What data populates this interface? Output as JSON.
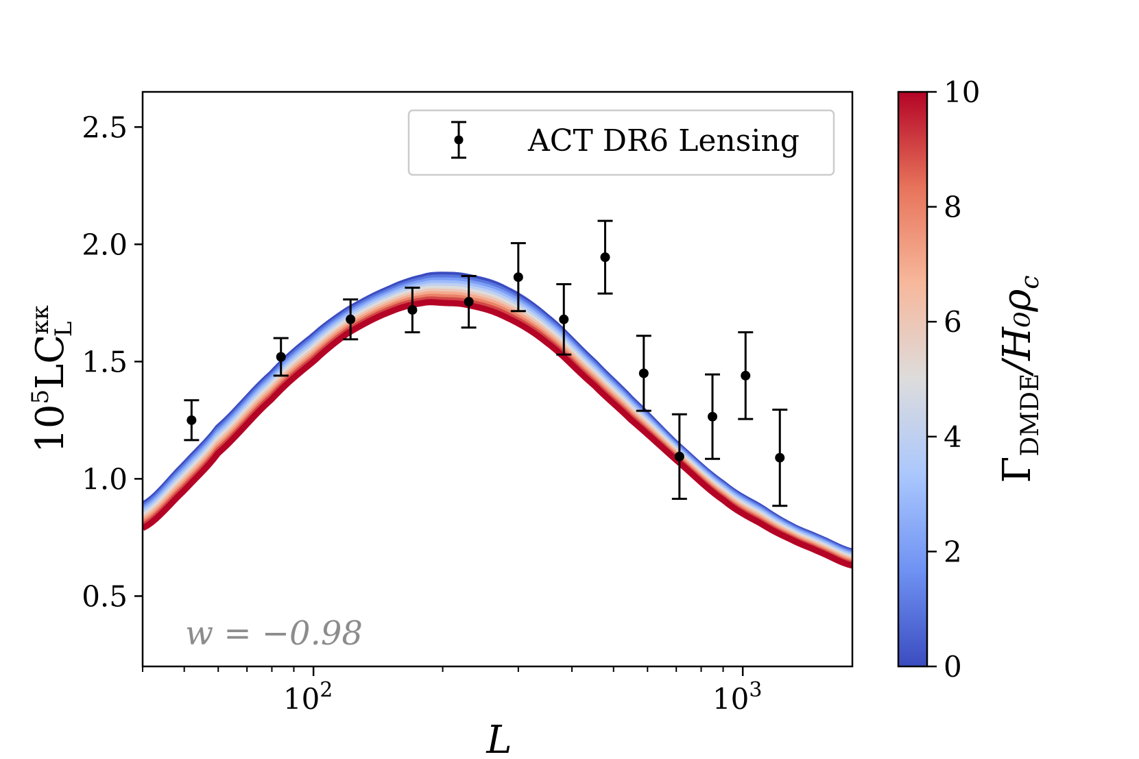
{
  "chart_data": {
    "type": "line",
    "title": "",
    "xlabel": "L",
    "ylabel": "10⁵ L C_L^{κκ}",
    "xscale": "log",
    "xlim": [
      40,
      1800
    ],
    "ylim": [
      0.2,
      2.65
    ],
    "grid": false,
    "x_ticks": [
      100,
      1000
    ],
    "x_tick_labels": [
      "10",
      "10"
    ],
    "x_tick_exponents": [
      "2",
      "3"
    ],
    "y_ticks": [
      0.5,
      1.0,
      1.5,
      2.0,
      2.5
    ],
    "y_tick_labels": [
      "0.5",
      "1.0",
      "1.5",
      "2.0",
      "2.5"
    ],
    "annotation": "w = −0.98",
    "legend": {
      "position": "top-right",
      "entries": [
        {
          "label": "ACT DR6 Lensing",
          "marker": "errorbar"
        }
      ]
    },
    "colorbar": {
      "label": "Γ_DMDE / H₀ρ_c",
      "label_main": "Γ",
      "label_sub": "DMDE",
      "label_rest": "/H₀ρ",
      "label_rest_sub": "c",
      "range": [
        0,
        10
      ],
      "ticks": [
        0,
        2,
        4,
        6,
        8,
        10
      ],
      "tick_labels": [
        "0",
        "2",
        "4",
        "6",
        "8",
        "10"
      ],
      "colormap": "coolwarm",
      "colors": [
        "#3b4cc0",
        "#6f92f3",
        "#aac7fd",
        "#dddcdc",
        "#f7b89c",
        "#e7745b",
        "#b40426"
      ]
    },
    "series_model": {
      "description": "Model curves for Γ_DMDE/H0ρc from 0 to 10",
      "gamma_values": [
        0,
        1,
        2,
        3,
        4,
        5,
        6,
        7,
        8,
        9,
        10
      ],
      "x": [
        40,
        50,
        60,
        80,
        100,
        120,
        150,
        180,
        200,
        230,
        280,
        350,
        450,
        550,
        700,
        900,
        1100,
        1300,
        1500,
        1800
      ],
      "y_gamma0": [
        0.89,
        1.06,
        1.22,
        1.45,
        1.61,
        1.72,
        1.81,
        1.86,
        1.87,
        1.86,
        1.81,
        1.69,
        1.5,
        1.34,
        1.15,
        0.98,
        0.88,
        0.8,
        0.75,
        0.69
      ],
      "y_gamma10": [
        0.79,
        0.95,
        1.11,
        1.34,
        1.5,
        1.62,
        1.71,
        1.75,
        1.75,
        1.74,
        1.69,
        1.58,
        1.4,
        1.25,
        1.08,
        0.91,
        0.81,
        0.74,
        0.69,
        0.63
      ]
    },
    "series_data": {
      "name": "ACT DR6 Lensing",
      "x": [
        52,
        84,
        122,
        170,
        230,
        300,
        383,
        478,
        588,
        712,
        850,
        1015,
        1220
      ],
      "y": [
        1.25,
        1.52,
        1.68,
        1.72,
        1.755,
        1.86,
        1.68,
        1.945,
        1.45,
        1.095,
        1.265,
        1.44,
        1.09
      ],
      "yerr": [
        0.085,
        0.08,
        0.085,
        0.095,
        0.11,
        0.145,
        0.15,
        0.155,
        0.16,
        0.18,
        0.18,
        0.185,
        0.205
      ]
    }
  }
}
